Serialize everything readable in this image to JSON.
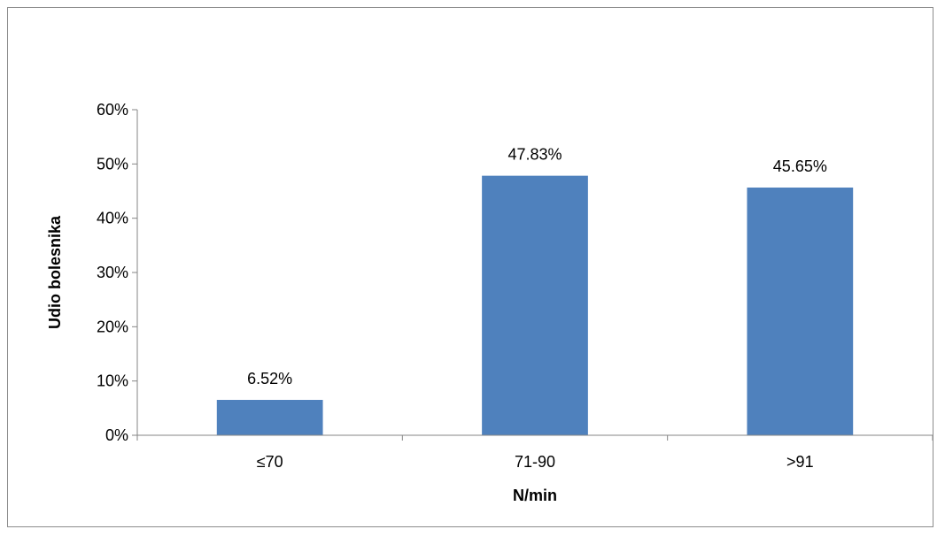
{
  "chart_data": {
    "type": "bar",
    "title": "",
    "xlabel": "N/min",
    "ylabel": "Udio bolesnika",
    "categories": [
      "≤70",
      "71-90",
      ">91"
    ],
    "values": [
      6.52,
      47.83,
      45.65
    ],
    "data_labels": [
      "6.52%",
      "47.83%",
      "45.65%"
    ],
    "ylim": [
      0,
      60
    ],
    "yticks": [
      0,
      10,
      20,
      30,
      40,
      50,
      60
    ],
    "ytick_labels": [
      "0%",
      "10%",
      "20%",
      "30%",
      "40%",
      "50%",
      "60%"
    ],
    "grid": false,
    "legend": "none",
    "bar_color": "#4F81BD"
  }
}
